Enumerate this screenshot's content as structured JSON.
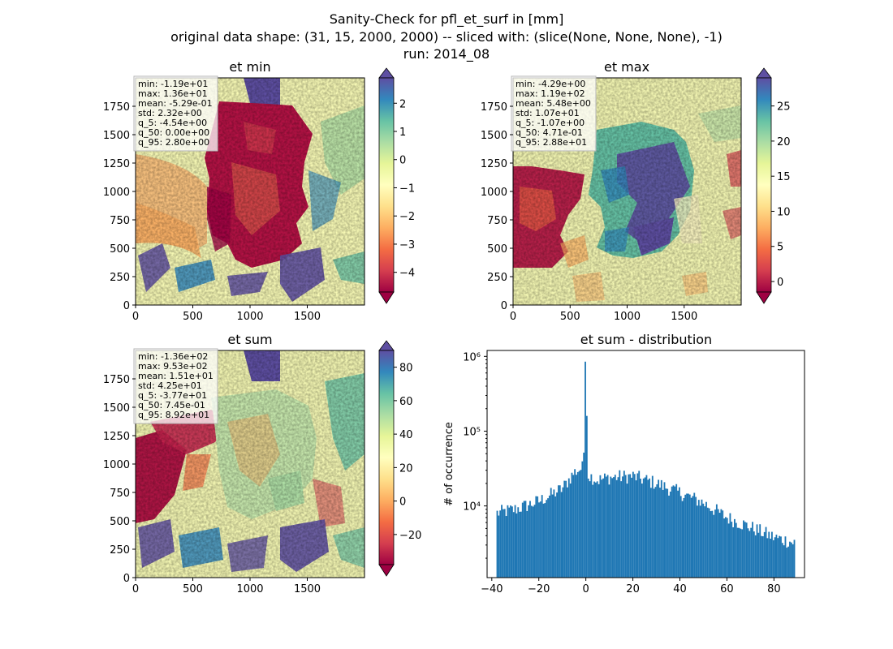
{
  "figure": {
    "title_lines": [
      "Sanity-Check for pfl_et_surf in [mm]",
      "original data shape: (31, 15, 2000, 2000) -- sliced with: (slice(None, None, None), -1)",
      "run: 2014_08"
    ]
  },
  "chart_data": [
    {
      "type": "heatmap",
      "title": "et min",
      "x_ticks": [
        "0",
        "500",
        "1000",
        "1500"
      ],
      "y_ticks": [
        "0",
        "250",
        "500",
        "750",
        "1000",
        "1250",
        "1500",
        "1750"
      ],
      "xlim": [
        0,
        2000
      ],
      "ylim": [
        0,
        2000
      ],
      "colormap": "Spectral",
      "colorbar_range": [
        -4.7,
        2.9
      ],
      "colorbar_ticks": [
        "2",
        "1",
        "0",
        "−1",
        "−2",
        "−3",
        "−4"
      ],
      "colorbar_tick_values": [
        2,
        1,
        0,
        -1,
        -2,
        -3,
        -4
      ],
      "stats": [
        "min: -1.19e+01",
        "max: 1.36e+01",
        "mean: -5.29e-01",
        "std: 2.32e+00",
        "q_5: -4.54e+00",
        "q_50: 0.00e+00",
        "q_95: 2.80e+00"
      ]
    },
    {
      "type": "heatmap",
      "title": "et max",
      "x_ticks": [
        "0",
        "500",
        "1000",
        "1500"
      ],
      "y_ticks": [
        "0",
        "250",
        "500",
        "750",
        "1000",
        "1250",
        "1500",
        "1750"
      ],
      "xlim": [
        0,
        2000
      ],
      "ylim": [
        0,
        2000
      ],
      "colormap": "Spectral",
      "colorbar_range": [
        -1.5,
        29
      ],
      "colorbar_ticks": [
        "25",
        "20",
        "15",
        "10",
        "5",
        "0"
      ],
      "colorbar_tick_values": [
        25,
        20,
        15,
        10,
        5,
        0
      ],
      "stats": [
        "min: -4.29e+00",
        "max: 1.19e+02",
        "mean: 5.48e+00",
        "std: 1.07e+01",
        "q_5: -1.07e+00",
        "q_50: 4.71e-01",
        "q_95: 2.88e+01"
      ]
    },
    {
      "type": "heatmap",
      "title": "et sum",
      "x_ticks": [
        "0",
        "500",
        "1000",
        "1500"
      ],
      "y_ticks": [
        "0",
        "250",
        "500",
        "750",
        "1000",
        "1250",
        "1500",
        "1750"
      ],
      "xlim": [
        0,
        2000
      ],
      "ylim": [
        0,
        2000
      ],
      "colormap": "Spectral",
      "colorbar_range": [
        -38,
        90
      ],
      "colorbar_ticks": [
        "80",
        "60",
        "40",
        "20",
        "0",
        "−20"
      ],
      "colorbar_tick_values": [
        80,
        60,
        40,
        20,
        0,
        -20
      ],
      "stats": [
        "min: -1.36e+02",
        "max: 9.53e+02",
        "mean: 1.51e+01",
        "std: 4.25e+01",
        "q_5: -3.77e+01",
        "q_50: 7.45e-01",
        "q_95: 8.92e+01"
      ]
    },
    {
      "type": "bar",
      "title": "et sum - distribution",
      "ylabel": "# of occurrence",
      "y_scale": "log",
      "ylim": [
        1100,
        1200000
      ],
      "xlim": [
        -42,
        93
      ],
      "x_ticks": [
        "−40",
        "−20",
        "0",
        "20",
        "40",
        "60",
        "80"
      ],
      "x_tick_values": [
        -40,
        -20,
        0,
        20,
        40,
        60,
        80
      ],
      "y_ticks": [
        "10⁴",
        "10⁵",
        "10⁶"
      ],
      "y_tick_values": [
        10000,
        100000,
        1000000
      ],
      "color": "#1f77b4",
      "profile_x": [
        -38,
        -30,
        -20,
        -10,
        -5,
        -1,
        0,
        1,
        5,
        10,
        20,
        30,
        40,
        50,
        60,
        70,
        80,
        89
      ],
      "profile_y": [
        8000,
        9000,
        11500,
        17000,
        28000,
        33000,
        850000,
        26000,
        22000,
        24000,
        25000,
        20000,
        15000,
        11000,
        7000,
        5200,
        3800,
        3200
      ]
    }
  ]
}
